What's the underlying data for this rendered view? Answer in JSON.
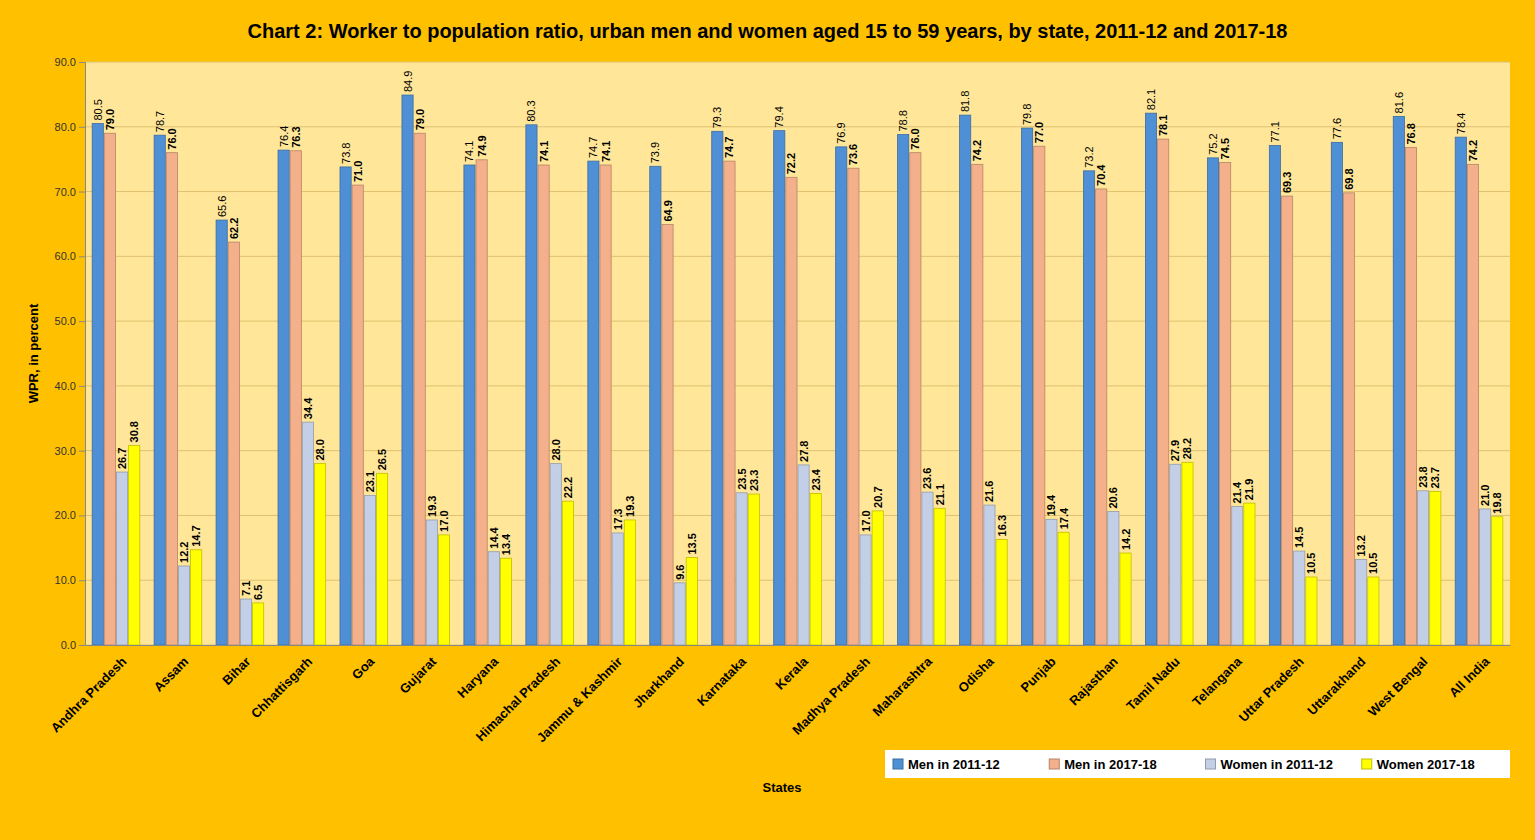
{
  "chart_data": {
    "type": "bar",
    "title": "Chart 2: Worker to population ratio, urban men and women aged 15 to 59 years, by state, 2011-12 and 2017-18",
    "x_label": "States",
    "y_label": "WPR, in percent",
    "categories": [
      "Andhra Pradesh",
      "Assam",
      "Bihar",
      "Chhattisgarh",
      "Goa",
      "Gujarat",
      "Haryana",
      "Himachal Pradesh",
      "Jammu & Kashmir",
      "Jharkhand",
      "Karnataka",
      "Kerala",
      "Madhya Pradesh",
      "Maharashtra",
      "Odisha",
      "Punjab",
      "Rajasthan",
      "Tamil Nadu",
      "Telangana",
      "Uttar Pradesh",
      "Uttarakhand",
      "West Bengal",
      "All India"
    ],
    "series": [
      {
        "name": "Men in 2011-12",
        "color": "#4f8fd6",
        "values": [
          80.5,
          78.7,
          65.6,
          76.4,
          73.8,
          84.9,
          74.1,
          80.3,
          74.7,
          73.9,
          79.3,
          79.4,
          76.9,
          78.8,
          81.8,
          79.8,
          73.2,
          82.1,
          75.2,
          77.1,
          77.6,
          81.6,
          78.4
        ],
        "value_labels": [
          "80.5",
          "78.7",
          "65.6",
          "76.4",
          "73.8",
          "84.9",
          "74.1",
          "80.3",
          "74.7",
          "73.9",
          "79.3",
          "79.4",
          "76.9",
          "78.8",
          "81.8",
          "79.8",
          "73.2",
          "82.1",
          "75.2",
          "77.1",
          "77.6",
          "81.6",
          "78.4"
        ]
      },
      {
        "name": "Men in 2017-18",
        "color": "#f4b08a",
        "values": [
          79.0,
          76.0,
          62.2,
          76.3,
          71.0,
          79.0,
          74.9,
          74.1,
          74.1,
          64.9,
          74.7,
          72.2,
          73.6,
          76.0,
          74.2,
          77.0,
          70.4,
          78.1,
          74.5,
          69.3,
          69.8,
          76.8,
          74.2
        ],
        "value_labels": [
          "79.0",
          "76.0",
          "62.2",
          "76.3",
          "71.0",
          "79.0",
          "74.9",
          "74.1",
          "74.1",
          "64.9",
          "74.7",
          "72.2",
          "73.6",
          "76.0",
          "74.2",
          "77.0",
          "70.4",
          "78.1",
          "74.5",
          "69.3",
          "69.8",
          "76.8",
          "74.2"
        ]
      },
      {
        "name": "Women in 2011-12",
        "color": "#c3cfe6",
        "values": [
          26.7,
          12.2,
          7.1,
          34.4,
          23.1,
          19.3,
          14.4,
          28.0,
          17.3,
          9.6,
          23.5,
          27.8,
          17.0,
          23.6,
          21.6,
          19.4,
          20.6,
          27.9,
          21.4,
          14.5,
          13.2,
          23.8,
          21.0
        ],
        "value_labels": [
          "26.7",
          "12.2",
          "7.1",
          "34.4",
          "23.1",
          "19.3",
          "14.4",
          "28.0",
          "17.3",
          "9.6",
          "23.5",
          "27.8",
          "17.0",
          "23.6",
          "21.6",
          "19.4",
          "20.6",
          "27.9",
          "21.4",
          "14.5",
          "13.2",
          "23.8",
          "21.0"
        ]
      },
      {
        "name": "Women 2017-18",
        "color": "#ffff00",
        "values": [
          30.8,
          14.7,
          6.5,
          28.0,
          26.5,
          17.0,
          13.4,
          22.2,
          19.3,
          13.5,
          23.3,
          23.4,
          20.7,
          21.1,
          16.3,
          17.4,
          14.2,
          28.2,
          21.9,
          10.5,
          10.5,
          23.7,
          19.8
        ],
        "value_labels": [
          "30.8",
          "14.7",
          "6.5",
          "28.0",
          "26.5",
          "17.0",
          "13.4",
          "22.2",
          "19.3",
          "13.5",
          "23.3",
          "23.4",
          "20.7",
          "21.1",
          "16.3",
          "17.4",
          "14.2",
          "28.2",
          "21.9",
          "10.5",
          "10.5",
          "23.7",
          "19.8"
        ]
      }
    ],
    "ylim": [
      0,
      90
    ],
    "yticks": [
      {
        "value": 0,
        "label": "0.0"
      },
      {
        "value": 10,
        "label": "10.0"
      },
      {
        "value": 20,
        "label": "20.0"
      },
      {
        "value": 30,
        "label": "30.0"
      },
      {
        "value": 40,
        "label": "40.0"
      },
      {
        "value": 50,
        "label": "50.0"
      },
      {
        "value": 60,
        "label": "60.0"
      },
      {
        "value": 70,
        "label": "70.0"
      },
      {
        "value": 80,
        "label": "80.0"
      },
      {
        "value": 90,
        "label": "90.0"
      }
    ],
    "grid": true,
    "data_labels": true,
    "legend": "bottom-right"
  }
}
